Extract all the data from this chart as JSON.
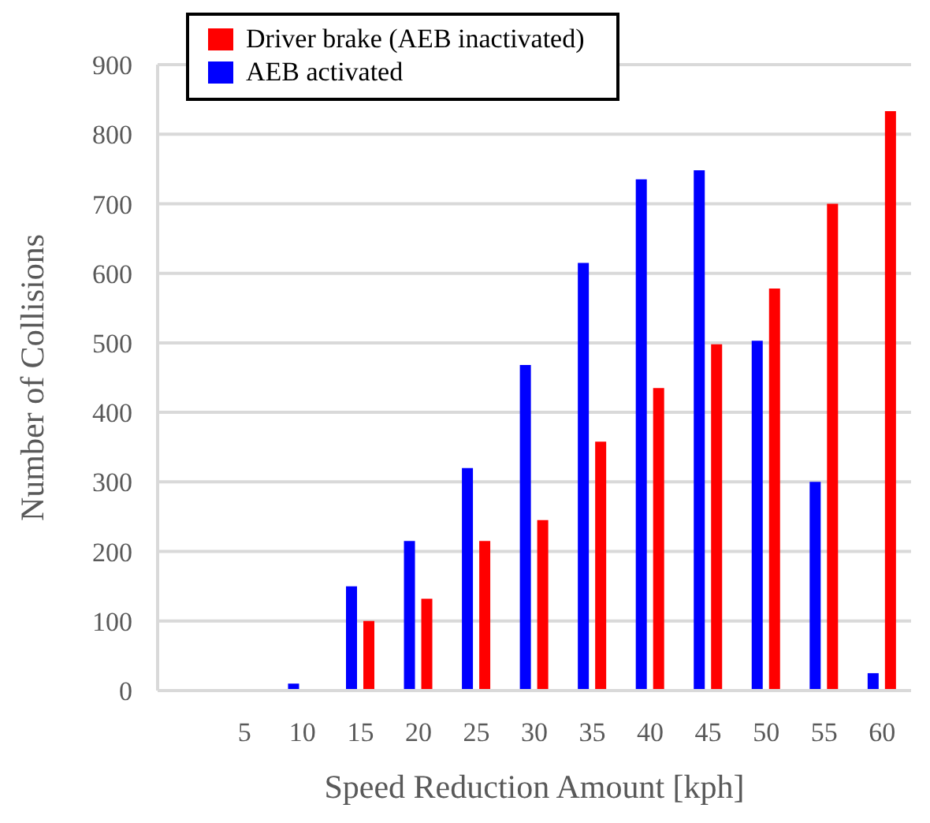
{
  "chart_data": {
    "type": "bar",
    "xlabel": "Speed Reduction Amount [kph]",
    "ylabel": "Number of Collisions",
    "categories": [
      null,
      "5",
      "10",
      "15",
      "20",
      "25",
      "30",
      "35",
      "40",
      "45",
      "50",
      "55",
      "60"
    ],
    "series": [
      {
        "name": "Driver brake (AEB inactivated)",
        "color": "#ff0000",
        "values": [
          0,
          0,
          0,
          100,
          132,
          215,
          245,
          358,
          435,
          498,
          578,
          700,
          833
        ]
      },
      {
        "name": "AEB activated",
        "color": "#0000ff",
        "values": [
          0,
          0,
          10,
          150,
          215,
          320,
          468,
          615,
          735,
          748,
          503,
          300,
          25
        ]
      }
    ],
    "ylim": [
      0,
      900
    ],
    "yticks": [
      0,
      100,
      200,
      300,
      400,
      500,
      600,
      700,
      800,
      900
    ],
    "grid": "y",
    "legend": "top"
  }
}
